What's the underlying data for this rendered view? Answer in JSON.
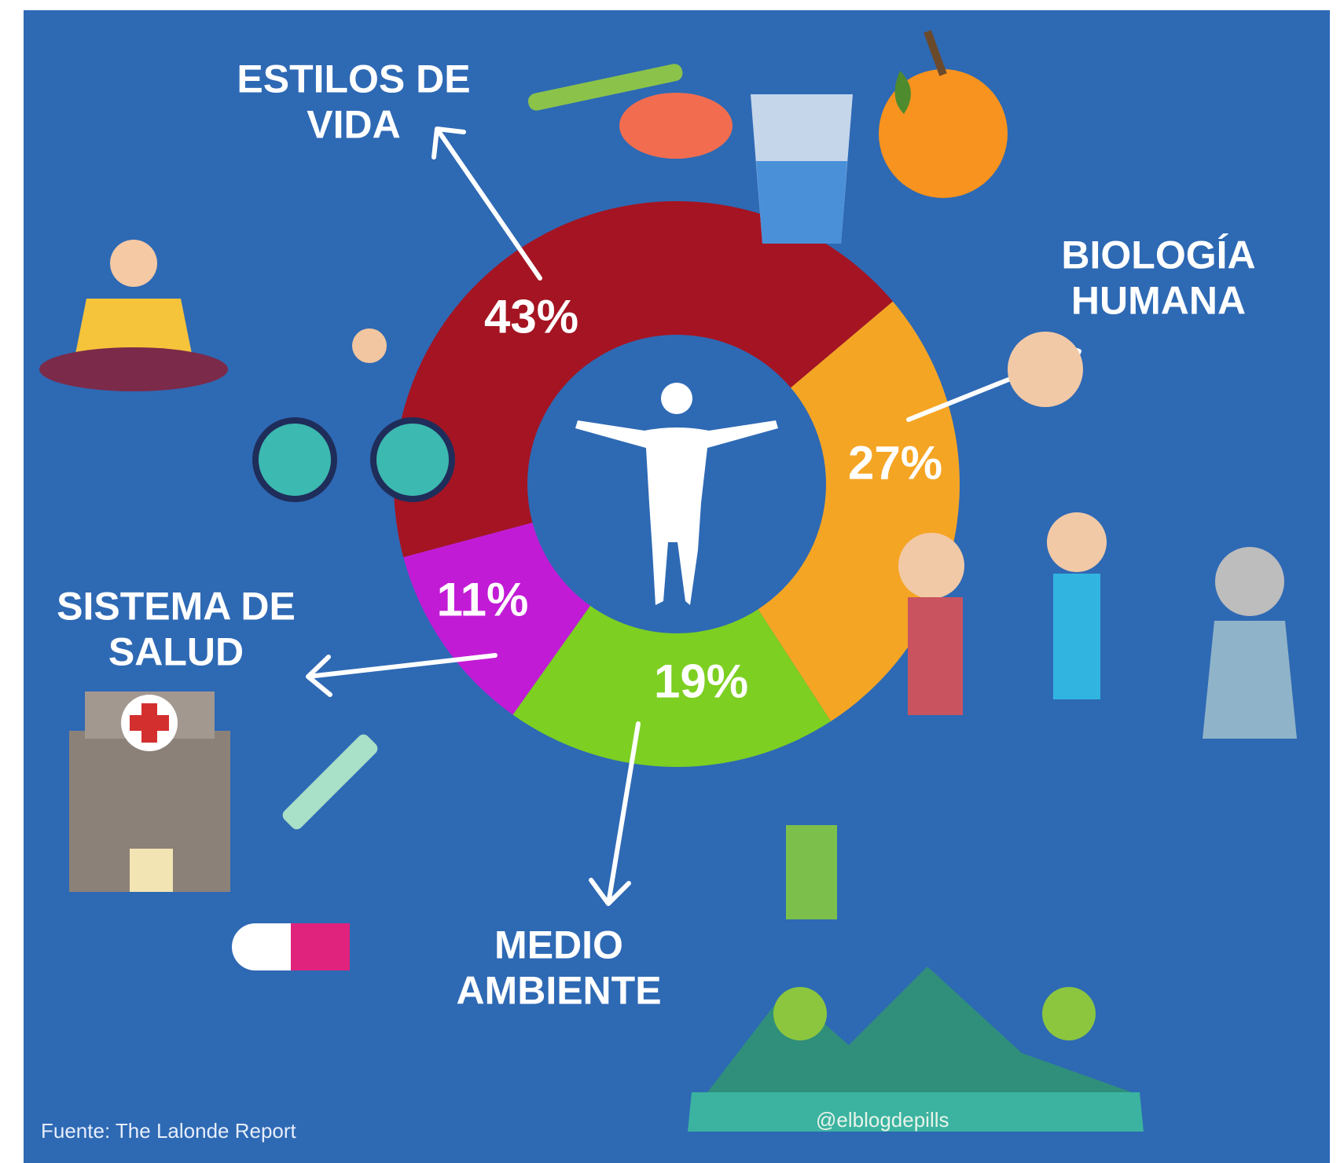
{
  "chart_data": {
    "type": "donut",
    "categories": [
      "ESTILOS DE\nVIDA",
      "BIOLOGÍA\nHUMANA",
      "MEDIO\nAMBIENTE",
      "SISTEMA DE\nSALUD"
    ],
    "values": [
      43,
      27,
      19,
      11
    ],
    "value_labels": [
      "43%",
      "27%",
      "19%",
      "11%"
    ],
    "colors": [
      "#a51422",
      "#f5a524",
      "#7dcf22",
      "#c21bd6"
    ],
    "source": "Fuente: The Lalonde Report",
    "watermark": "@elblogdepills"
  }
}
